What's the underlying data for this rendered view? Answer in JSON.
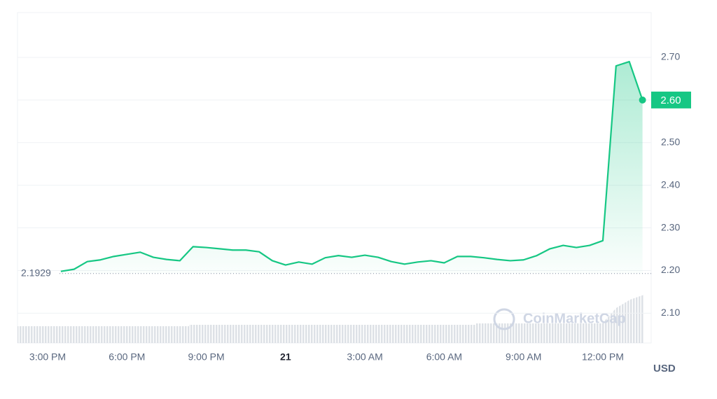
{
  "chart_data": {
    "type": "line",
    "categories": [
      "3:00 PM",
      null,
      null,
      null,
      null,
      null,
      "6:00 PM",
      null,
      null,
      null,
      null,
      null,
      "9:00 PM",
      null,
      null,
      null,
      null,
      null,
      "21",
      null,
      null,
      null,
      null,
      null,
      "3:00 AM",
      null,
      null,
      null,
      null,
      null,
      "6:00 AM",
      null,
      null,
      null,
      null,
      null,
      "9:00 AM",
      null,
      null,
      null,
      null,
      null,
      "12:00 PM",
      null,
      null,
      null
    ],
    "values": [
      null,
      2.198,
      2.203,
      2.221,
      2.225,
      2.233,
      2.238,
      2.243,
      2.231,
      2.226,
      2.223,
      2.256,
      2.254,
      2.251,
      2.248,
      2.248,
      2.244,
      2.223,
      2.213,
      2.22,
      2.215,
      2.23,
      2.235,
      2.231,
      2.236,
      2.231,
      2.221,
      2.215,
      2.22,
      2.223,
      2.218,
      2.233,
      2.233,
      2.23,
      2.226,
      2.223,
      2.225,
      2.235,
      2.251,
      2.259,
      2.254,
      2.259,
      2.27,
      2.68,
      2.69,
      2.6
    ],
    "color": "#16c784",
    "ylim": [
      2.03,
      2.805
    ],
    "yticks": [
      {
        "value": 2.1,
        "label": "2.10"
      },
      {
        "value": 2.2,
        "label": "2.20"
      },
      {
        "value": 2.3,
        "label": "2.30"
      },
      {
        "value": 2.4,
        "label": "2.40"
      },
      {
        "value": 2.5,
        "label": "2.50"
      },
      {
        "value": 2.6,
        "label": "2.60"
      },
      {
        "value": 2.7,
        "label": "2.70"
      }
    ],
    "grid": true,
    "reference": 2.1929,
    "current_price": {
      "value": 2.6,
      "label": "2.60"
    },
    "y_label": "USD",
    "watermark": "CoinMarketCap"
  }
}
